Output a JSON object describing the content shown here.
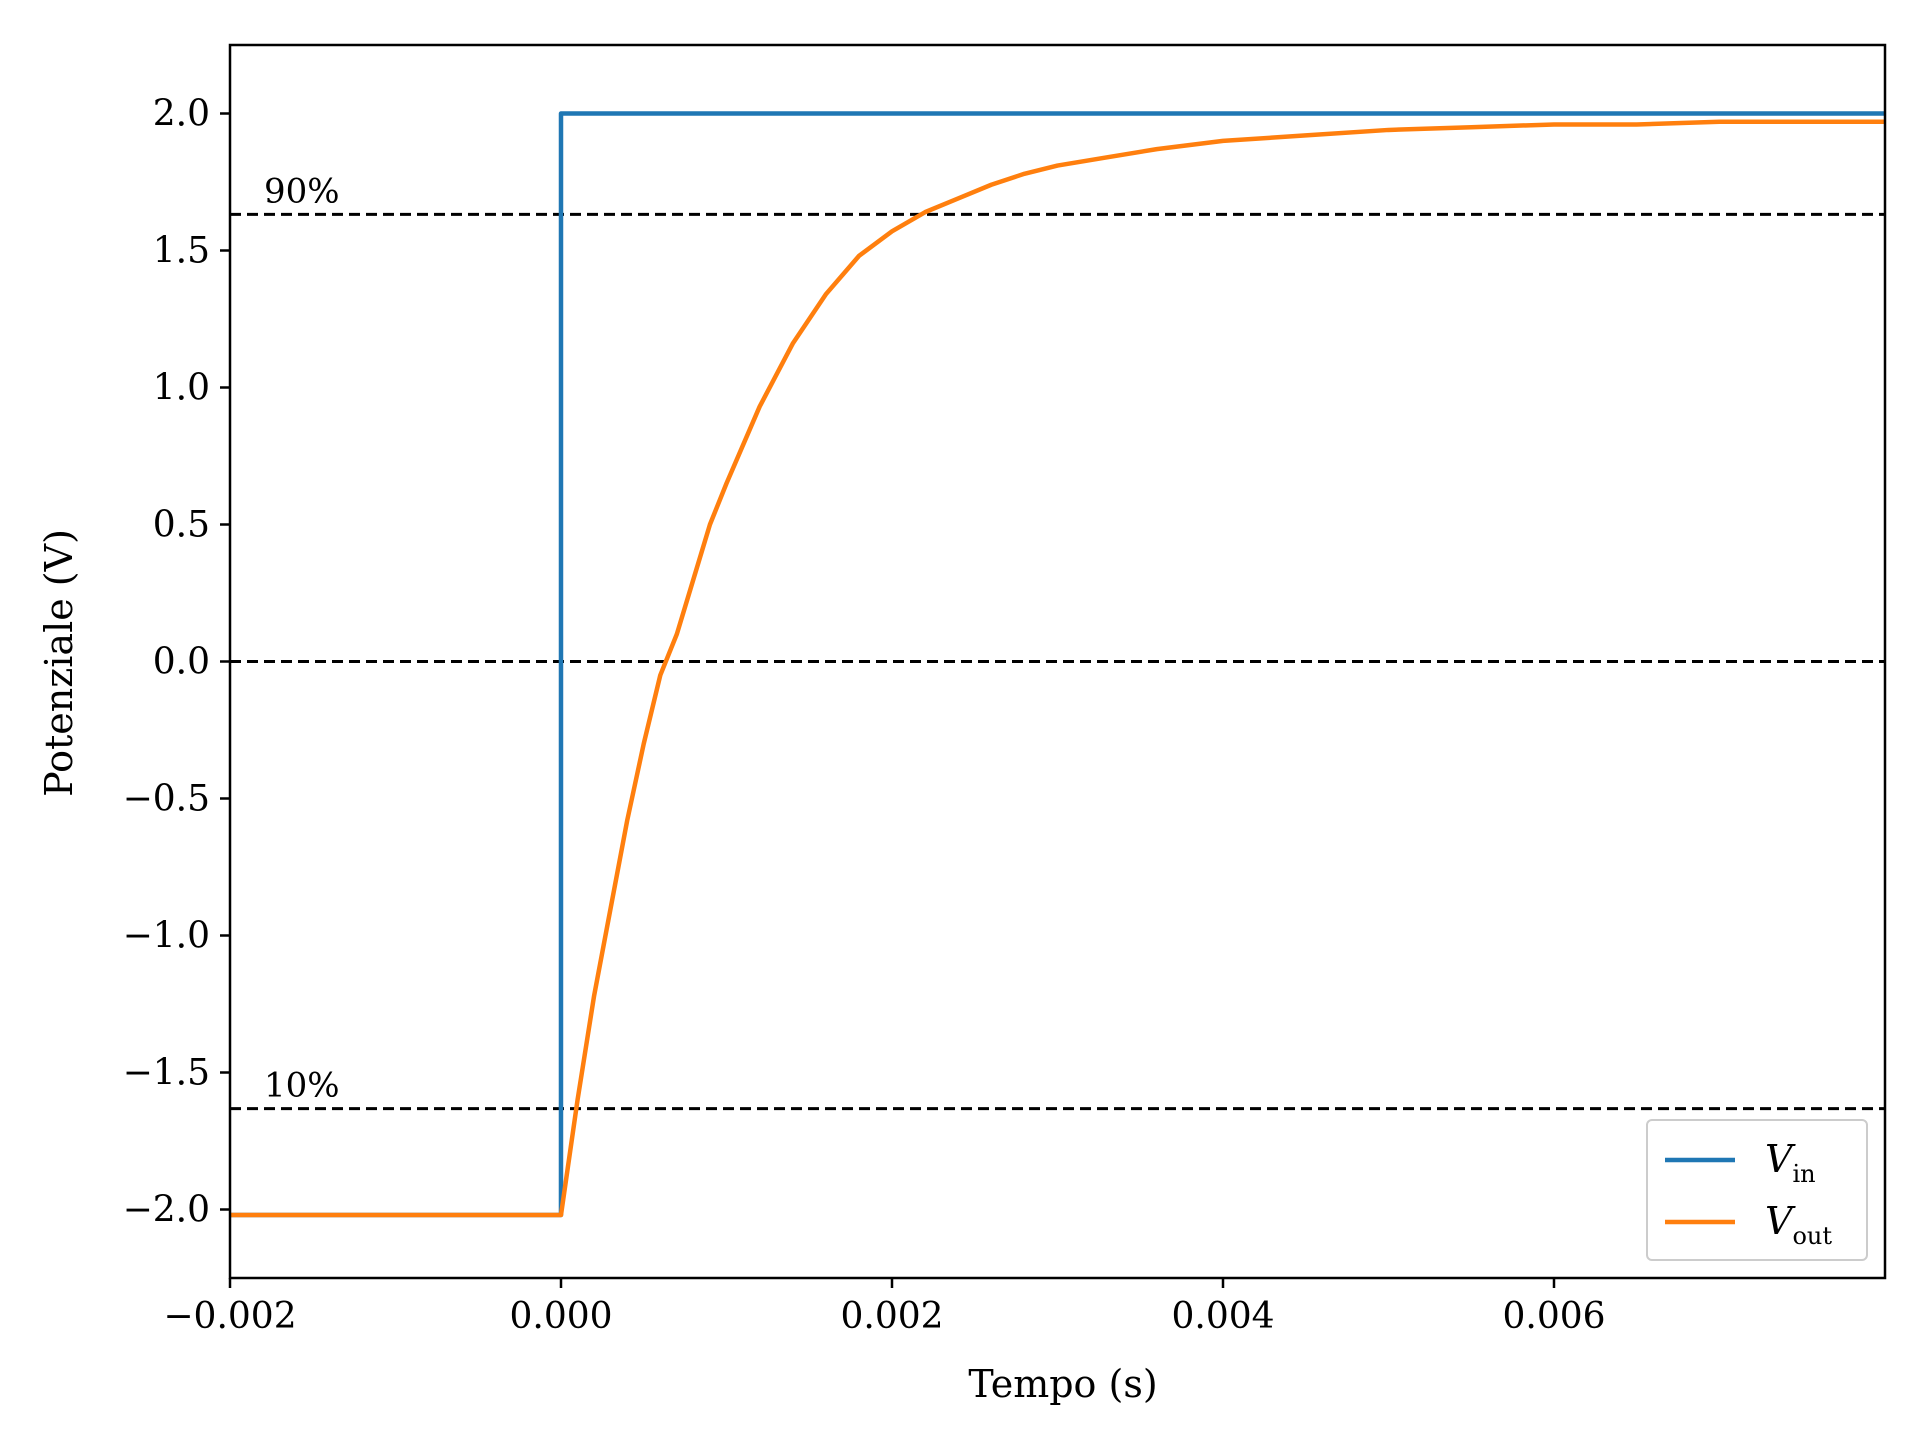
{
  "chart_data": {
    "type": "line",
    "title": "",
    "xlabel": "Tempo (s)",
    "ylabel": "Potenziale (V)",
    "xlim": [
      -0.002,
      0.008
    ],
    "ylim": [
      -2.25,
      2.25
    ],
    "xticks": [
      -0.002,
      0.0,
      0.002,
      0.004,
      0.006
    ],
    "xtick_labels": [
      "−0.002",
      "0.000",
      "0.002",
      "0.004",
      "0.006"
    ],
    "yticks": [
      -2.0,
      -1.5,
      -1.0,
      -0.5,
      0.0,
      0.5,
      1.0,
      1.5,
      2.0
    ],
    "ytick_labels": [
      "−2.0",
      "−1.5",
      "−1.0",
      "−0.5",
      "0.0",
      "0.5",
      "1.0",
      "1.5",
      "2.0"
    ],
    "grid": false,
    "legend_position": "bottom-right",
    "reference_lines": [
      {
        "y": 1.632,
        "label": "90%",
        "style": "dashed"
      },
      {
        "y": 0.0,
        "label": "",
        "style": "dashed"
      },
      {
        "y": -1.632,
        "label": "10%",
        "style": "dashed"
      }
    ],
    "series": [
      {
        "name": "V",
        "subscript": "in",
        "color": "#1f77b4",
        "x": [
          -0.002,
          -1e-07,
          0.0,
          0.008
        ],
        "y": [
          -2.02,
          -2.02,
          2.0,
          2.0
        ]
      },
      {
        "name": "V",
        "subscript": "out",
        "color": "#ff7f0e",
        "x": [
          -0.002,
          0.0,
          0.0001,
          0.0002,
          0.0003,
          0.0004,
          0.0005,
          0.0006,
          0.0007,
          0.0008,
          0.0009,
          0.001,
          0.0012,
          0.0014,
          0.0016,
          0.0018,
          0.002,
          0.0022,
          0.0024,
          0.0026,
          0.0028,
          0.003,
          0.0033,
          0.0036,
          0.004,
          0.0045,
          0.005,
          0.0055,
          0.006,
          0.0065,
          0.007,
          0.0075,
          0.008
        ],
        "y": [
          -2.02,
          -2.02,
          -1.6,
          -1.22,
          -0.9,
          -0.58,
          -0.3,
          -0.05,
          0.1,
          0.3,
          0.5,
          0.65,
          0.93,
          1.16,
          1.34,
          1.48,
          1.57,
          1.64,
          1.69,
          1.74,
          1.78,
          1.81,
          1.84,
          1.87,
          1.9,
          1.92,
          1.94,
          1.95,
          1.96,
          1.96,
          1.97,
          1.97,
          1.97
        ]
      }
    ]
  }
}
